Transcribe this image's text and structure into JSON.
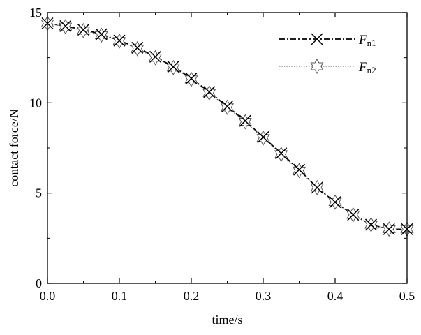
{
  "chart_data": {
    "type": "line",
    "title": "",
    "xlabel": "time/s",
    "ylabel": "contact force/N",
    "xlim": [
      0,
      0.5
    ],
    "ylim": [
      0,
      15
    ],
    "xticks": [
      "0.0",
      "0.1",
      "0.2",
      "0.3",
      "0.4",
      "0.5"
    ],
    "yticks": [
      "0",
      "5",
      "10",
      "15"
    ],
    "grid": false,
    "legend_position": "top-right",
    "series": [
      {
        "name_main": "F",
        "name_sub": "n1",
        "line_style": "dash-dot",
        "marker": "x",
        "color": "#000000",
        "x": [
          0.0,
          0.025,
          0.05,
          0.075,
          0.1,
          0.125,
          0.15,
          0.175,
          0.2,
          0.225,
          0.25,
          0.275,
          0.3,
          0.325,
          0.35,
          0.375,
          0.4,
          0.425,
          0.45,
          0.475,
          0.5
        ],
        "values": [
          14.4,
          14.25,
          14.05,
          13.8,
          13.45,
          13.05,
          12.55,
          12.0,
          11.35,
          10.6,
          9.8,
          9.0,
          8.1,
          7.2,
          6.3,
          5.3,
          4.5,
          3.8,
          3.25,
          3.0,
          3.0
        ]
      },
      {
        "name_main": "F",
        "name_sub": "n2",
        "line_style": "dotted",
        "marker": "star",
        "color": "#555555",
        "x": [
          0.0,
          0.025,
          0.05,
          0.075,
          0.1,
          0.125,
          0.15,
          0.175,
          0.2,
          0.225,
          0.25,
          0.275,
          0.3,
          0.325,
          0.35,
          0.375,
          0.4,
          0.425,
          0.45,
          0.475,
          0.5
        ],
        "values": [
          14.4,
          14.22,
          14.0,
          13.75,
          13.42,
          13.0,
          12.5,
          11.95,
          11.3,
          10.55,
          9.75,
          8.95,
          8.05,
          7.15,
          6.25,
          5.3,
          4.5,
          3.8,
          3.25,
          3.0,
          3.0
        ]
      }
    ]
  }
}
